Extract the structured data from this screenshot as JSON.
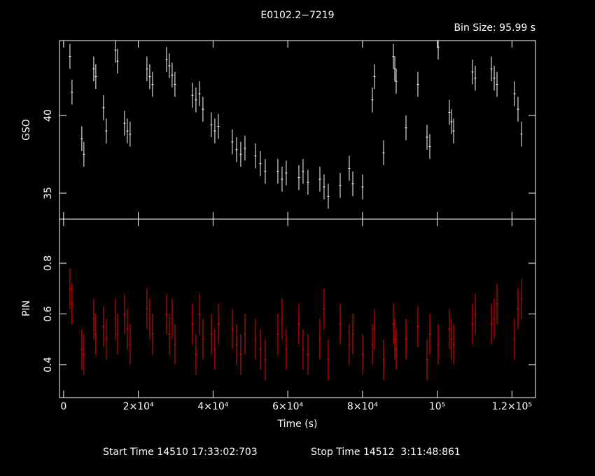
{
  "title": "E0102.2−7219",
  "bin_size": "Bin Size: 95.99 s",
  "start_time": "Start Time 14510 17:33:02:703",
  "stop_time": "Stop Time 14512  3:11:48:861",
  "chart_data": [
    {
      "type": "errorbar",
      "ylabel": "GSO",
      "color": "#ffffff",
      "error": 0.8,
      "x": [
        1690,
        2250,
        4870,
        5430,
        8060,
        8620,
        10680,
        11430,
        13870,
        14430,
        16300,
        17050,
        17800,
        22300,
        23050,
        23800,
        27550,
        28300,
        29050,
        29800,
        34480,
        35420,
        36360,
        37290,
        39540,
        40480,
        41420,
        45160,
        46290,
        47410,
        48540,
        51350,
        52660,
        53970,
        57340,
        58470,
        59590,
        62970,
        64090,
        65400,
        68590,
        69710,
        70840,
        74020,
        76460,
        77400,
        80020,
        82640,
        83210,
        85640,
        88270,
        88640,
        89010,
        91640,
        94820,
        97260,
        98010,
        100260,
        103250,
        103820,
        104380,
        109440,
        110190,
        114500,
        115250,
        116000,
        120680,
        121620,
        122560
      ],
      "values": [
        43.8,
        41.5,
        38.5,
        37.5,
        43.0,
        42.5,
        40.5,
        39.0,
        44.2,
        43.5,
        39.5,
        39.0,
        38.8,
        43.0,
        42.5,
        42.0,
        43.6,
        43.2,
        42.6,
        42.0,
        41.3,
        41.0,
        41.4,
        40.4,
        39.4,
        39.0,
        39.3,
        38.3,
        37.8,
        37.5,
        37.9,
        37.4,
        36.9,
        36.4,
        36.4,
        35.9,
        36.3,
        36.0,
        36.4,
        35.7,
        35.9,
        35.4,
        34.8,
        35.5,
        36.6,
        35.6,
        35.4,
        41.0,
        42.5,
        37.6,
        43.8,
        43.0,
        42.2,
        39.2,
        42.0,
        38.6,
        38.0,
        44.4,
        40.2,
        39.6,
        39.0,
        42.8,
        42.4,
        43.0,
        42.4,
        42.0,
        41.4,
        40.4,
        38.8
      ],
      "xlim": [
        -1100,
        126300
      ],
      "ylim": [
        33.33,
        44.82
      ],
      "yticks": [
        35,
        40
      ]
    },
    {
      "type": "errorbar",
      "ylabel": "PIN",
      "xlabel": "Time (s)",
      "color": "#ff0000",
      "error": 0.08,
      "x": [
        1690,
        2250,
        4870,
        5430,
        8060,
        8620,
        10680,
        11430,
        13870,
        14430,
        16300,
        17050,
        17800,
        22300,
        23050,
        23800,
        27550,
        28300,
        29050,
        29800,
        34480,
        35420,
        36360,
        37290,
        39540,
        40480,
        41420,
        45160,
        46290,
        47410,
        48540,
        51350,
        52660,
        53970,
        57340,
        58470,
        59590,
        62970,
        64090,
        65400,
        68590,
        69710,
        70840,
        74020,
        76460,
        77400,
        80020,
        82640,
        83210,
        85640,
        88270,
        88640,
        89010,
        91640,
        94820,
        97260,
        98010,
        100260,
        103250,
        103820,
        104380,
        109440,
        110190,
        114500,
        115250,
        116000,
        120680,
        121620,
        122560
      ],
      "values": [
        0.7,
        0.64,
        0.46,
        0.44,
        0.58,
        0.52,
        0.55,
        0.5,
        0.58,
        0.52,
        0.6,
        0.54,
        0.48,
        0.62,
        0.58,
        0.52,
        0.6,
        0.52,
        0.58,
        0.48,
        0.56,
        0.44,
        0.6,
        0.5,
        0.52,
        0.46,
        0.56,
        0.54,
        0.48,
        0.44,
        0.52,
        0.5,
        0.46,
        0.42,
        0.52,
        0.58,
        0.46,
        0.56,
        0.46,
        0.44,
        0.5,
        0.62,
        0.42,
        0.56,
        0.48,
        0.52,
        0.44,
        0.48,
        0.54,
        0.42,
        0.56,
        0.5,
        0.46,
        0.5,
        0.55,
        0.42,
        0.52,
        0.48,
        0.54,
        0.5,
        0.48,
        0.56,
        0.6,
        0.56,
        0.58,
        0.64,
        0.5,
        0.62,
        0.66
      ],
      "xlim": [
        -1100,
        126300
      ],
      "ylim": [
        0.27,
        0.974
      ],
      "yticks": [
        0.4,
        0.6,
        0.8
      ],
      "xticks": [
        0,
        {
          "value": 20000,
          "label": "2×10⁴"
        },
        {
          "value": 40000,
          "label": "4×10⁴"
        },
        {
          "value": 60000,
          "label": "6×10⁴"
        },
        {
          "value": 80000,
          "label": "8×10⁴"
        },
        {
          "value": 100000,
          "label": "10⁵"
        },
        {
          "value": 120000,
          "label": "1.2×10⁵"
        }
      ]
    }
  ]
}
